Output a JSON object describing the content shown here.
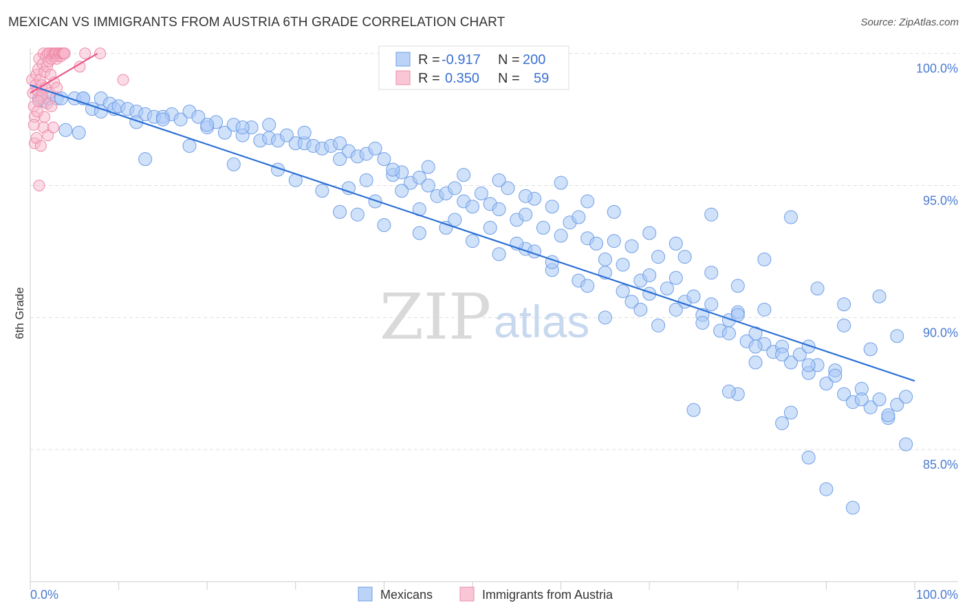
{
  "title": "MEXICAN VS IMMIGRANTS FROM AUSTRIA 6TH GRADE CORRELATION CHART",
  "source": "Source: ZipAtlas.com",
  "watermark": {
    "zip": "ZIP",
    "atlas": "atlas"
  },
  "legend": {
    "rows": [
      {
        "r_label": "R =",
        "r_value": "-0.917",
        "n_label": "N =",
        "n_value": "200",
        "color": "#a9c8f5"
      },
      {
        "r_label": "R =",
        "r_value": "0.350",
        "n_label": "N =",
        "n_value": "59",
        "color": "#f7b8cb"
      }
    ]
  },
  "bottom_legend": [
    "Mexicans",
    "Immigrants from Austria"
  ],
  "colors": {
    "blue_fill": "#a9c8f5",
    "blue_stroke": "#6f9ee6",
    "blue_line": "#2a6fd6",
    "pink_fill": "#f7b8cb",
    "pink_stroke": "#ee8aa8",
    "pink_line": "#e8578a",
    "grid": "#dddddd",
    "tick_text": "#4a7bd0"
  },
  "chart_data": {
    "type": "scatter",
    "title": "MEXICAN VS IMMIGRANTS FROM AUSTRIA 6TH GRADE CORRELATION CHART",
    "xlabel": "",
    "ylabel": "6th Grade",
    "xlim": [
      0,
      100
    ],
    "ylim": [
      80.0,
      100.2
    ],
    "x_tick_labels": [
      "0.0%",
      "100.0%"
    ],
    "y_ticks": [
      100,
      95,
      90,
      85
    ],
    "y_tick_labels": [
      "100.0%",
      "95.0%",
      "90.0%",
      "85.0%"
    ],
    "grid": true,
    "series": [
      {
        "name": "Mexicans",
        "color": "#a9c8f5",
        "trend": {
          "x": [
            0,
            100
          ],
          "y": [
            98.8,
            87.6
          ]
        },
        "points": [
          [
            1,
            98.3
          ],
          [
            1.6,
            98.2
          ],
          [
            2.1,
            98.3
          ],
          [
            3,
            98.3
          ],
          [
            3.5,
            98.3
          ],
          [
            4,
            97.1
          ],
          [
            5,
            98.3
          ],
          [
            6,
            98.3
          ],
          [
            7,
            97.9
          ],
          [
            8,
            98.3
          ],
          [
            9,
            98.1
          ],
          [
            9.5,
            97.9
          ],
          [
            10,
            98.0
          ],
          [
            11,
            97.9
          ],
          [
            12,
            97.8
          ],
          [
            13,
            97.7
          ],
          [
            14,
            97.6
          ],
          [
            15,
            97.6
          ],
          [
            16,
            97.7
          ],
          [
            17,
            97.5
          ],
          [
            18,
            97.8
          ],
          [
            19,
            97.6
          ],
          [
            20,
            97.2
          ],
          [
            21,
            97.4
          ],
          [
            22,
            97.0
          ],
          [
            23,
            97.3
          ],
          [
            24,
            96.9
          ],
          [
            25,
            97.2
          ],
          [
            26,
            96.7
          ],
          [
            27,
            96.8
          ],
          [
            28,
            96.7
          ],
          [
            29,
            96.9
          ],
          [
            30,
            96.6
          ],
          [
            31,
            96.6
          ],
          [
            32,
            96.5
          ],
          [
            33,
            96.4
          ],
          [
            34,
            96.5
          ],
          [
            35,
            96.6
          ],
          [
            36,
            96.3
          ],
          [
            37,
            96.1
          ],
          [
            38,
            96.2
          ],
          [
            39,
            96.4
          ],
          [
            40,
            96.0
          ],
          [
            41,
            95.4
          ],
          [
            42,
            95.5
          ],
          [
            43,
            95.1
          ],
          [
            44,
            95.3
          ],
          [
            45,
            95.0
          ],
          [
            46,
            94.6
          ],
          [
            47,
            94.7
          ],
          [
            48,
            94.9
          ],
          [
            49,
            94.4
          ],
          [
            50,
            94.2
          ],
          [
            51,
            94.7
          ],
          [
            52,
            94.3
          ],
          [
            53,
            94.1
          ],
          [
            54,
            94.9
          ],
          [
            55,
            93.7
          ],
          [
            56,
            93.9
          ],
          [
            57,
            94.5
          ],
          [
            58,
            93.4
          ],
          [
            59,
            94.2
          ],
          [
            60,
            93.1
          ],
          [
            61,
            93.6
          ],
          [
            62,
            93.8
          ],
          [
            63,
            93.0
          ],
          [
            64,
            92.8
          ],
          [
            65,
            92.2
          ],
          [
            66,
            92.9
          ],
          [
            67,
            92.0
          ],
          [
            68,
            92.7
          ],
          [
            69,
            91.4
          ],
          [
            70,
            91.6
          ],
          [
            71,
            92.3
          ],
          [
            72,
            91.1
          ],
          [
            73,
            91.5
          ],
          [
            74,
            90.6
          ],
          [
            75,
            90.8
          ],
          [
            76,
            90.1
          ],
          [
            77,
            90.5
          ],
          [
            78,
            89.5
          ],
          [
            79,
            89.9
          ],
          [
            80,
            90.2
          ],
          [
            81,
            89.1
          ],
          [
            82,
            89.4
          ],
          [
            83,
            89.0
          ],
          [
            84,
            88.7
          ],
          [
            85,
            88.9
          ],
          [
            86,
            88.3
          ],
          [
            87,
            88.6
          ],
          [
            88,
            87.9
          ],
          [
            89,
            88.2
          ],
          [
            90,
            87.5
          ],
          [
            91,
            88.0
          ],
          [
            92,
            87.1
          ],
          [
            93,
            86.8
          ],
          [
            94,
            87.3
          ],
          [
            95,
            86.6
          ],
          [
            96,
            86.9
          ],
          [
            97,
            86.2
          ],
          [
            98,
            86.7
          ],
          [
            99,
            87.0
          ],
          [
            5.5,
            97.0
          ],
          [
            13,
            96.0
          ],
          [
            18,
            96.5
          ],
          [
            23,
            95.8
          ],
          [
            28,
            95.6
          ],
          [
            30,
            95.2
          ],
          [
            33,
            94.8
          ],
          [
            35,
            94.0
          ],
          [
            37,
            93.9
          ],
          [
            40,
            93.5
          ],
          [
            44,
            93.2
          ],
          [
            47,
            93.4
          ],
          [
            50,
            92.9
          ],
          [
            53,
            92.4
          ],
          [
            56,
            92.6
          ],
          [
            59,
            91.8
          ],
          [
            62,
            91.4
          ],
          [
            65,
            91.7
          ],
          [
            68,
            90.6
          ],
          [
            70,
            90.9
          ],
          [
            73,
            90.3
          ],
          [
            76,
            89.8
          ],
          [
            79,
            89.4
          ],
          [
            82,
            88.9
          ],
          [
            85,
            88.6
          ],
          [
            88,
            88.2
          ],
          [
            91,
            87.8
          ],
          [
            94,
            86.9
          ],
          [
            97,
            86.3
          ],
          [
            99,
            85.2
          ],
          [
            85,
            86.0
          ],
          [
            88,
            84.7
          ],
          [
            90,
            83.5
          ],
          [
            93,
            82.8
          ],
          [
            80,
            87.1
          ],
          [
            75,
            86.5
          ],
          [
            79,
            87.2
          ],
          [
            82,
            88.3
          ],
          [
            86,
            86.4
          ],
          [
            88,
            88.9
          ],
          [
            92,
            89.7
          ],
          [
            96,
            90.8
          ],
          [
            98,
            89.3
          ],
          [
            74,
            92.3
          ],
          [
            77,
            93.9
          ],
          [
            80,
            91.2
          ],
          [
            83,
            92.2
          ],
          [
            86,
            93.8
          ],
          [
            89,
            91.1
          ],
          [
            92,
            90.5
          ],
          [
            66,
            94.0
          ],
          [
            70,
            93.2
          ],
          [
            73,
            92.8
          ],
          [
            77,
            91.7
          ],
          [
            80,
            90.1
          ],
          [
            60,
            95.1
          ],
          [
            63,
            94.4
          ],
          [
            56,
            94.6
          ],
          [
            53,
            95.2
          ],
          [
            49,
            95.4
          ],
          [
            45,
            95.7
          ],
          [
            41,
            95.6
          ],
          [
            38,
            95.2
          ],
          [
            35,
            96.0
          ],
          [
            31,
            97.0
          ],
          [
            27,
            97.3
          ],
          [
            24,
            97.2
          ],
          [
            20,
            97.3
          ],
          [
            15,
            97.5
          ],
          [
            12,
            97.4
          ],
          [
            8,
            97.8
          ],
          [
            6,
            98.3
          ],
          [
            67,
            91.0
          ],
          [
            69,
            90.3
          ],
          [
            71,
            89.7
          ],
          [
            63,
            91.2
          ],
          [
            65,
            90.0
          ],
          [
            57,
            92.5
          ],
          [
            59,
            92.1
          ],
          [
            55,
            92.8
          ],
          [
            52,
            93.4
          ],
          [
            48,
            93.7
          ],
          [
            44,
            94.1
          ],
          [
            42,
            94.8
          ],
          [
            39,
            94.4
          ],
          [
            36,
            94.9
          ],
          [
            83,
            90.3
          ],
          [
            95,
            88.8
          ]
        ]
      },
      {
        "name": "Immigrants from Austria",
        "color": "#f7b8cb",
        "trend": {
          "x": [
            0,
            7.6
          ],
          "y": [
            98.5,
            100.0
          ]
        },
        "points": [
          [
            0.2,
            99.0
          ],
          [
            0.3,
            98.5
          ],
          [
            0.4,
            98.0
          ],
          [
            0.5,
            97.6
          ],
          [
            0.6,
            98.8
          ],
          [
            0.7,
            99.2
          ],
          [
            0.8,
            98.6
          ],
          [
            0.9,
            99.4
          ],
          [
            1.0,
            99.8
          ],
          [
            1.1,
            99.0
          ],
          [
            1.2,
            98.3
          ],
          [
            1.3,
            98.8
          ],
          [
            1.4,
            99.6
          ],
          [
            1.5,
            100.0
          ],
          [
            1.6,
            99.3
          ],
          [
            1.7,
            98.7
          ],
          [
            1.8,
            99.9
          ],
          [
            1.9,
            99.5
          ],
          [
            2.0,
            100.0
          ],
          [
            2.1,
            99.7
          ],
          [
            2.2,
            100.0
          ],
          [
            2.3,
            99.2
          ],
          [
            2.4,
            99.8
          ],
          [
            2.5,
            100.0
          ],
          [
            2.6,
            99.9
          ],
          [
            2.7,
            100.0
          ],
          [
            2.8,
            100.0
          ],
          [
            2.9,
            100.0
          ],
          [
            3.0,
            99.8
          ],
          [
            3.1,
            100.0
          ],
          [
            3.2,
            99.9
          ],
          [
            3.3,
            100.0
          ],
          [
            3.4,
            100.0
          ],
          [
            3.5,
            99.9
          ],
          [
            3.6,
            100.0
          ],
          [
            3.7,
            100.0
          ],
          [
            3.8,
            100.0
          ],
          [
            3.9,
            100.0
          ],
          [
            6.2,
            100.0
          ],
          [
            7.9,
            100.0
          ],
          [
            0.5,
            96.6
          ],
          [
            0.7,
            96.8
          ],
          [
            1.2,
            96.5
          ],
          [
            1.0,
            95.0
          ],
          [
            1.5,
            97.2
          ],
          [
            2.0,
            96.9
          ],
          [
            2.6,
            97.2
          ],
          [
            1.6,
            97.6
          ],
          [
            0.8,
            97.8
          ],
          [
            0.4,
            97.3
          ],
          [
            2.2,
            98.5
          ],
          [
            2.7,
            98.9
          ],
          [
            1.9,
            98.1
          ],
          [
            3.0,
            98.7
          ],
          [
            1.3,
            98.4
          ],
          [
            0.9,
            98.2
          ],
          [
            5.6,
            99.5
          ],
          [
            10.5,
            99.0
          ],
          [
            2.4,
            98.0
          ]
        ]
      }
    ]
  }
}
